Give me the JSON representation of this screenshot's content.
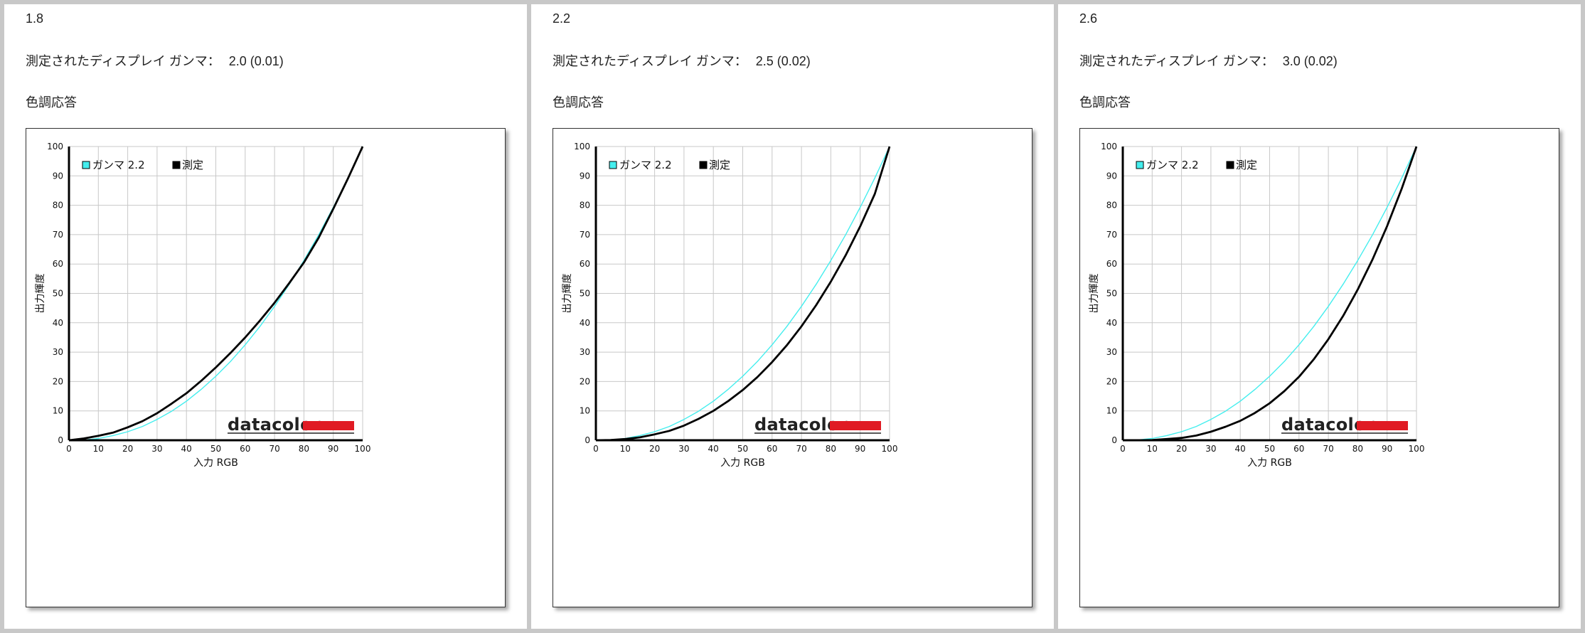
{
  "panels": [
    {
      "title": "1.8",
      "gamma_label": "測定されたディスプレイ ガンマ：",
      "gamma_value": "2.0 (0.01)",
      "subtitle": "色調応答"
    },
    {
      "title": "2.2",
      "gamma_label": "測定されたディスプレイ ガンマ：",
      "gamma_value": "2.5 (0.02)",
      "subtitle": "色調応答"
    },
    {
      "title": "2.6",
      "gamma_label": "測定されたディスプレイ ガンマ：",
      "gamma_value": "3.0 (0.02)",
      "subtitle": "色調応答"
    }
  ],
  "logo_text": "datacolor",
  "colors": {
    "reference": "#44eeee",
    "measured": "#000000",
    "logo_bar": "#e01b24",
    "grid": "#c8c8c8"
  },
  "chart_data": [
    {
      "type": "line",
      "title": "",
      "xlabel": "入力 RGB",
      "ylabel": "出力輝度",
      "xlim": [
        0,
        100
      ],
      "ylim": [
        0,
        100
      ],
      "xticks": [
        0,
        10,
        20,
        30,
        40,
        50,
        60,
        70,
        80,
        90,
        100
      ],
      "yticks": [
        0,
        10,
        20,
        30,
        40,
        50,
        60,
        70,
        80,
        90,
        100
      ],
      "grid": true,
      "legend_position": "top-left",
      "series": [
        {
          "name": "ガンマ 2.2",
          "x": [
            0,
            5,
            10,
            15,
            20,
            25,
            30,
            35,
            40,
            45,
            50,
            55,
            60,
            65,
            70,
            75,
            80,
            85,
            90,
            95,
            100
          ],
          "y": [
            0,
            0.1,
            0.6,
            1.6,
            2.9,
            4.7,
            7.1,
            9.9,
            13.3,
            17.3,
            21.8,
            26.8,
            32.5,
            38.7,
            45.6,
            53.1,
            61.2,
            69.9,
            79.3,
            89.3,
            100
          ]
        },
        {
          "name": "測定",
          "x": [
            0,
            5,
            10,
            15,
            20,
            25,
            30,
            35,
            40,
            45,
            50,
            55,
            60,
            65,
            70,
            75,
            80,
            85,
            90,
            95,
            100
          ],
          "y": [
            0,
            0.6,
            1.5,
            2.6,
            4.4,
            6.5,
            9.2,
            12.5,
            16.0,
            20.2,
            24.8,
            29.7,
            35.0,
            40.7,
            46.8,
            53.5,
            60.5,
            68.9,
            78.8,
            89.1,
            100
          ]
        }
      ]
    },
    {
      "type": "line",
      "title": "",
      "xlabel": "入力 RGB",
      "ylabel": "出力輝度",
      "xlim": [
        0,
        100
      ],
      "ylim": [
        0,
        100
      ],
      "xticks": [
        0,
        10,
        20,
        30,
        40,
        50,
        60,
        70,
        80,
        90,
        100
      ],
      "yticks": [
        0,
        10,
        20,
        30,
        40,
        50,
        60,
        70,
        80,
        90,
        100
      ],
      "grid": true,
      "legend_position": "top-left",
      "series": [
        {
          "name": "ガンマ 2.2",
          "x": [
            0,
            5,
            10,
            15,
            20,
            25,
            30,
            35,
            40,
            45,
            50,
            55,
            60,
            65,
            70,
            75,
            80,
            85,
            90,
            95,
            100
          ],
          "y": [
            0,
            0.1,
            0.6,
            1.6,
            2.9,
            4.7,
            7.1,
            9.9,
            13.3,
            17.3,
            21.8,
            26.8,
            32.5,
            38.7,
            45.6,
            53.1,
            61.2,
            69.9,
            79.3,
            89.3,
            100
          ]
        },
        {
          "name": "測定",
          "x": [
            0,
            5,
            10,
            15,
            20,
            25,
            30,
            35,
            40,
            45,
            50,
            55,
            60,
            65,
            70,
            75,
            80,
            85,
            90,
            95,
            100
          ],
          "y": [
            0,
            0.1,
            0.4,
            1.0,
            2.0,
            3.2,
            5.0,
            7.3,
            10.0,
            13.3,
            17.1,
            21.5,
            26.6,
            32.3,
            38.8,
            46.0,
            54.0,
            62.9,
            72.8,
            83.9,
            100
          ]
        }
      ]
    },
    {
      "type": "line",
      "title": "",
      "xlabel": "入力 RGB",
      "ylabel": "出力輝度",
      "xlim": [
        0,
        100
      ],
      "ylim": [
        0,
        100
      ],
      "xticks": [
        0,
        10,
        20,
        30,
        40,
        50,
        60,
        70,
        80,
        90,
        100
      ],
      "yticks": [
        0,
        10,
        20,
        30,
        40,
        50,
        60,
        70,
        80,
        90,
        100
      ],
      "grid": true,
      "legend_position": "top-left",
      "series": [
        {
          "name": "ガンマ 2.2",
          "x": [
            0,
            5,
            10,
            15,
            20,
            25,
            30,
            35,
            40,
            45,
            50,
            55,
            60,
            65,
            70,
            75,
            80,
            85,
            90,
            95,
            100
          ],
          "y": [
            0,
            0.1,
            0.6,
            1.6,
            2.9,
            4.7,
            7.1,
            9.9,
            13.3,
            17.3,
            21.8,
            26.8,
            32.5,
            38.7,
            45.6,
            53.1,
            61.2,
            69.9,
            79.3,
            89.3,
            100
          ]
        },
        {
          "name": "測定",
          "x": [
            0,
            5,
            10,
            15,
            20,
            25,
            30,
            35,
            40,
            45,
            50,
            55,
            60,
            65,
            70,
            75,
            80,
            85,
            90,
            95,
            100
          ],
          "y": [
            0,
            0,
            0.1,
            0.4,
            0.8,
            1.6,
            2.9,
            4.6,
            6.6,
            9.3,
            12.6,
            16.7,
            21.6,
            27.5,
            34.4,
            42.3,
            51.3,
            61.5,
            72.9,
            85.7,
            100
          ]
        }
      ]
    }
  ]
}
